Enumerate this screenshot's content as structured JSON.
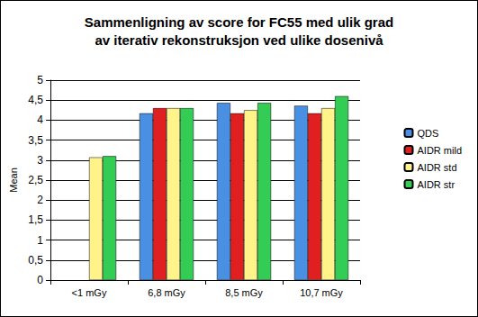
{
  "chart_data": {
    "type": "bar",
    "title": "Sammenligning av score for FC55 med ulik grad\nav iterativ rekonstruksjon ved ulike dosenivå",
    "y_label": "Mean",
    "categories": [
      "<1 mGy",
      "6,8 mGy",
      "8,5 mGy",
      "10,7 mGy"
    ],
    "series": [
      {
        "name": "QDS",
        "color": "#4a90e2",
        "values": [
          null,
          4.17,
          4.43,
          4.36
        ]
      },
      {
        "name": "AIDR mild",
        "color": "#e02020",
        "values": [
          null,
          4.3,
          4.17,
          4.17
        ]
      },
      {
        "name": "AIDR std",
        "color": "#fff38a",
        "values": [
          3.07,
          4.3,
          4.25,
          4.3
        ]
      },
      {
        "name": "AIDR str",
        "color": "#33cc55",
        "values": [
          3.1,
          4.3,
          4.43,
          4.6
        ]
      }
    ],
    "ylim": [
      0,
      5
    ],
    "yticks": [
      0,
      {
        "value": 0.5,
        "label": "0,5"
      },
      1,
      {
        "value": 1.5,
        "label": "1,5"
      },
      2,
      {
        "value": 2.5,
        "label": "2,5"
      },
      3,
      {
        "value": 3.5,
        "label": "3,5"
      },
      4,
      {
        "value": 4.5,
        "label": "4,5"
      },
      5
    ],
    "grid": true,
    "legend": "right"
  }
}
